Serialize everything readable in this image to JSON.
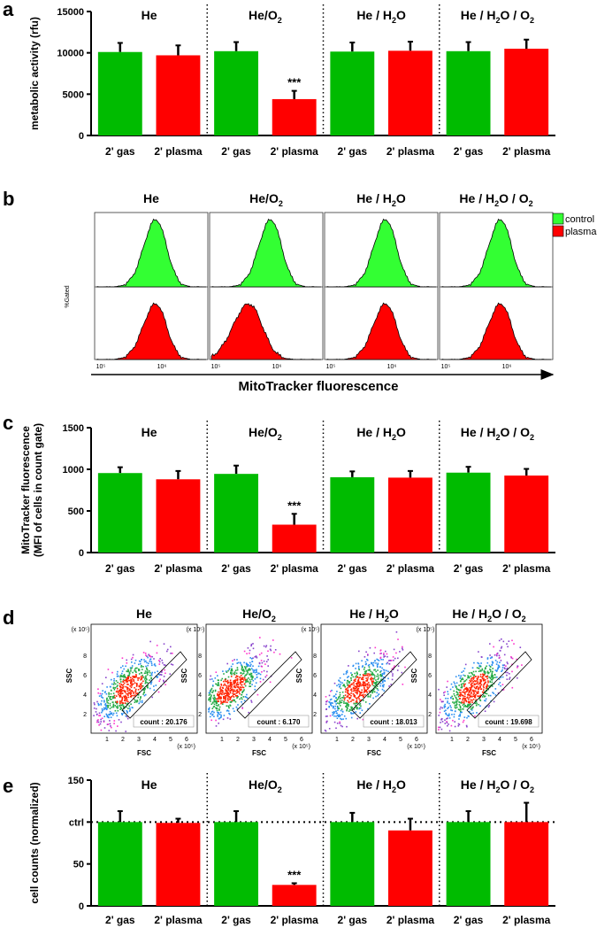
{
  "colors": {
    "control": "#00bb00",
    "plasma": "#ff0000",
    "hist_control": "#33ff33",
    "hist_plasma": "#ff0000"
  },
  "panel_letters": {
    "a": "a",
    "b": "b",
    "c": "c",
    "d": "d",
    "e": "e"
  },
  "conditions_a": [
    "He",
    "He/O2",
    "He / H2O",
    "He / H2O / O2"
  ],
  "conditions_c": [
    "He",
    "He/O2",
    "He / H2O",
    "He / H2O / O2"
  ],
  "conditions_b": [
    "He",
    "He/O2",
    "He / H2O",
    "He / H2O / O2"
  ],
  "conditions_d": [
    "He",
    "He/O2",
    "He / H2O",
    "He / H2O / O2"
  ],
  "conditions_e": [
    "He",
    "He/O2",
    "He / H2O",
    "He / H2O / O2"
  ],
  "significance": "***",
  "legend_b": {
    "control": "control",
    "plasma": "plasma"
  },
  "hist": {
    "ylabel": "%Gated",
    "xlabel": "MitoTracker fluorescence",
    "tick_1": "10⁵",
    "tick_2": "10⁶"
  },
  "scatter": {
    "ylabel": "SSC",
    "xlabel": "FSC",
    "unit": "(x 10⁵)",
    "yticks": [
      "2",
      "4",
      "6",
      "8"
    ],
    "xticks": [
      "1",
      "2",
      "3",
      "4",
      "5",
      "6"
    ],
    "counts": [
      "count : 20.176",
      "count : 6.170",
      "count : 18.013",
      "count : 19.698"
    ]
  },
  "chart_data": [
    {
      "id": "a",
      "type": "bar",
      "title": "",
      "ylabel": "metabolic activity (rfu)",
      "xlabel": "",
      "ylim": [
        0,
        15000
      ],
      "yticks": [
        "0",
        "5000",
        "10000",
        "15000"
      ],
      "categories": [
        "2' gas",
        "2' plasma",
        "2' gas",
        "2' plasma",
        "2' gas",
        "2' plasma",
        "2' gas",
        "2' plasma"
      ],
      "values": [
        10100,
        9700,
        10200,
        4400,
        10150,
        10250,
        10200,
        10500
      ],
      "errors": [
        1100,
        1200,
        1100,
        1000,
        1100,
        1100,
        1100,
        1100
      ],
      "significant": [
        false,
        false,
        false,
        true,
        false,
        false,
        false,
        false
      ],
      "ref_line": null
    },
    {
      "id": "b",
      "type": "histogram",
      "title": "",
      "xlabel": "MitoTracker fluorescence",
      "ylabel": "%Gated",
      "series": [
        {
          "name": "control",
          "peaks": [
            800000.0,
            800000.0,
            800000.0,
            800000.0
          ]
        },
        {
          "name": "plasma",
          "peaks": [
            800000.0,
            350000.0,
            800000.0,
            800000.0
          ]
        }
      ]
    },
    {
      "id": "c",
      "type": "bar",
      "title": "",
      "ylabel": "MitoTracker fluorescence (MFI of cells in count gate)",
      "xlabel": "",
      "ylabel_line1": "MitoTracker fluorescence",
      "ylabel_line2": "(MFI of cells in count gate)",
      "ylim": [
        0,
        1500
      ],
      "yticks": [
        "0",
        "500",
        "1000",
        "1500"
      ],
      "categories": [
        "2' gas",
        "2' plasma",
        "2' gas",
        "2' plasma",
        "2' gas",
        "2' plasma",
        "2' gas",
        "2' plasma"
      ],
      "values": [
        955,
        880,
        945,
        335,
        905,
        900,
        960,
        925
      ],
      "errors": [
        70,
        100,
        100,
        130,
        70,
        80,
        70,
        80
      ],
      "significant": [
        false,
        false,
        false,
        true,
        false,
        false,
        false,
        false
      ],
      "ref_line": null
    },
    {
      "id": "e",
      "type": "bar",
      "title": "",
      "ylabel": "cell counts (normalized)",
      "xlabel": "",
      "ylim": [
        0,
        150
      ],
      "yticks": [
        "0",
        "50",
        "ctrl",
        "150"
      ],
      "categories": [
        "2' gas",
        "2' plasma",
        "2' gas",
        "2' plasma",
        "2' gas",
        "2' plasma",
        "2' gas",
        "2' plasma"
      ],
      "values": [
        100,
        99,
        100,
        25,
        100,
        90,
        100,
        100
      ],
      "errors": [
        13,
        5,
        13,
        2,
        11,
        14,
        13,
        23
      ],
      "significant": [
        false,
        false,
        false,
        true,
        false,
        false,
        false,
        false
      ],
      "ref_line": 100
    }
  ]
}
